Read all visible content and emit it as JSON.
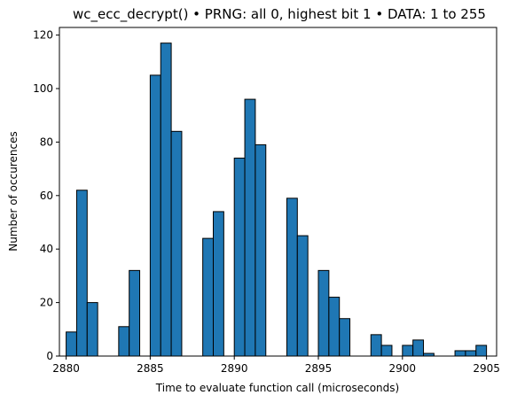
{
  "chart_data": {
    "type": "bar",
    "title": "wc_ecc_decrypt() • PRNG: all 0, highest bit 1 • DATA: 1 to 255",
    "xlabel": "Time to evaluate function call (microseconds)",
    "ylabel": "Number of occurences",
    "xlim": [
      2879.6,
      2905.6
    ],
    "ylim": [
      0,
      122.85
    ],
    "x_ticks": [
      2880,
      2885,
      2890,
      2895,
      2900,
      2905
    ],
    "y_ticks": [
      0,
      20,
      40,
      60,
      80,
      100,
      120
    ],
    "bin_width": 0.625,
    "bar_color": "#1f77b4",
    "edge_color": "#000000",
    "grid": false,
    "legend": "none",
    "bins": [
      {
        "x": 2880.0,
        "value": 9
      },
      {
        "x": 2880.625,
        "value": 62
      },
      {
        "x": 2881.25,
        "value": 20
      },
      {
        "x": 2883.125,
        "value": 11
      },
      {
        "x": 2883.75,
        "value": 32
      },
      {
        "x": 2885.0,
        "value": 105
      },
      {
        "x": 2885.625,
        "value": 117
      },
      {
        "x": 2886.25,
        "value": 84
      },
      {
        "x": 2888.125,
        "value": 44
      },
      {
        "x": 2888.75,
        "value": 54
      },
      {
        "x": 2890.0,
        "value": 74
      },
      {
        "x": 2890.625,
        "value": 96
      },
      {
        "x": 2891.25,
        "value": 79
      },
      {
        "x": 2893.125,
        "value": 59
      },
      {
        "x": 2893.75,
        "value": 45
      },
      {
        "x": 2895.0,
        "value": 32
      },
      {
        "x": 2895.625,
        "value": 22
      },
      {
        "x": 2896.25,
        "value": 14
      },
      {
        "x": 2898.125,
        "value": 8
      },
      {
        "x": 2898.75,
        "value": 4
      },
      {
        "x": 2900.0,
        "value": 4
      },
      {
        "x": 2900.625,
        "value": 6
      },
      {
        "x": 2901.25,
        "value": 1
      },
      {
        "x": 2903.125,
        "value": 2
      },
      {
        "x": 2903.75,
        "value": 2
      },
      {
        "x": 2904.375,
        "value": 4
      }
    ]
  }
}
